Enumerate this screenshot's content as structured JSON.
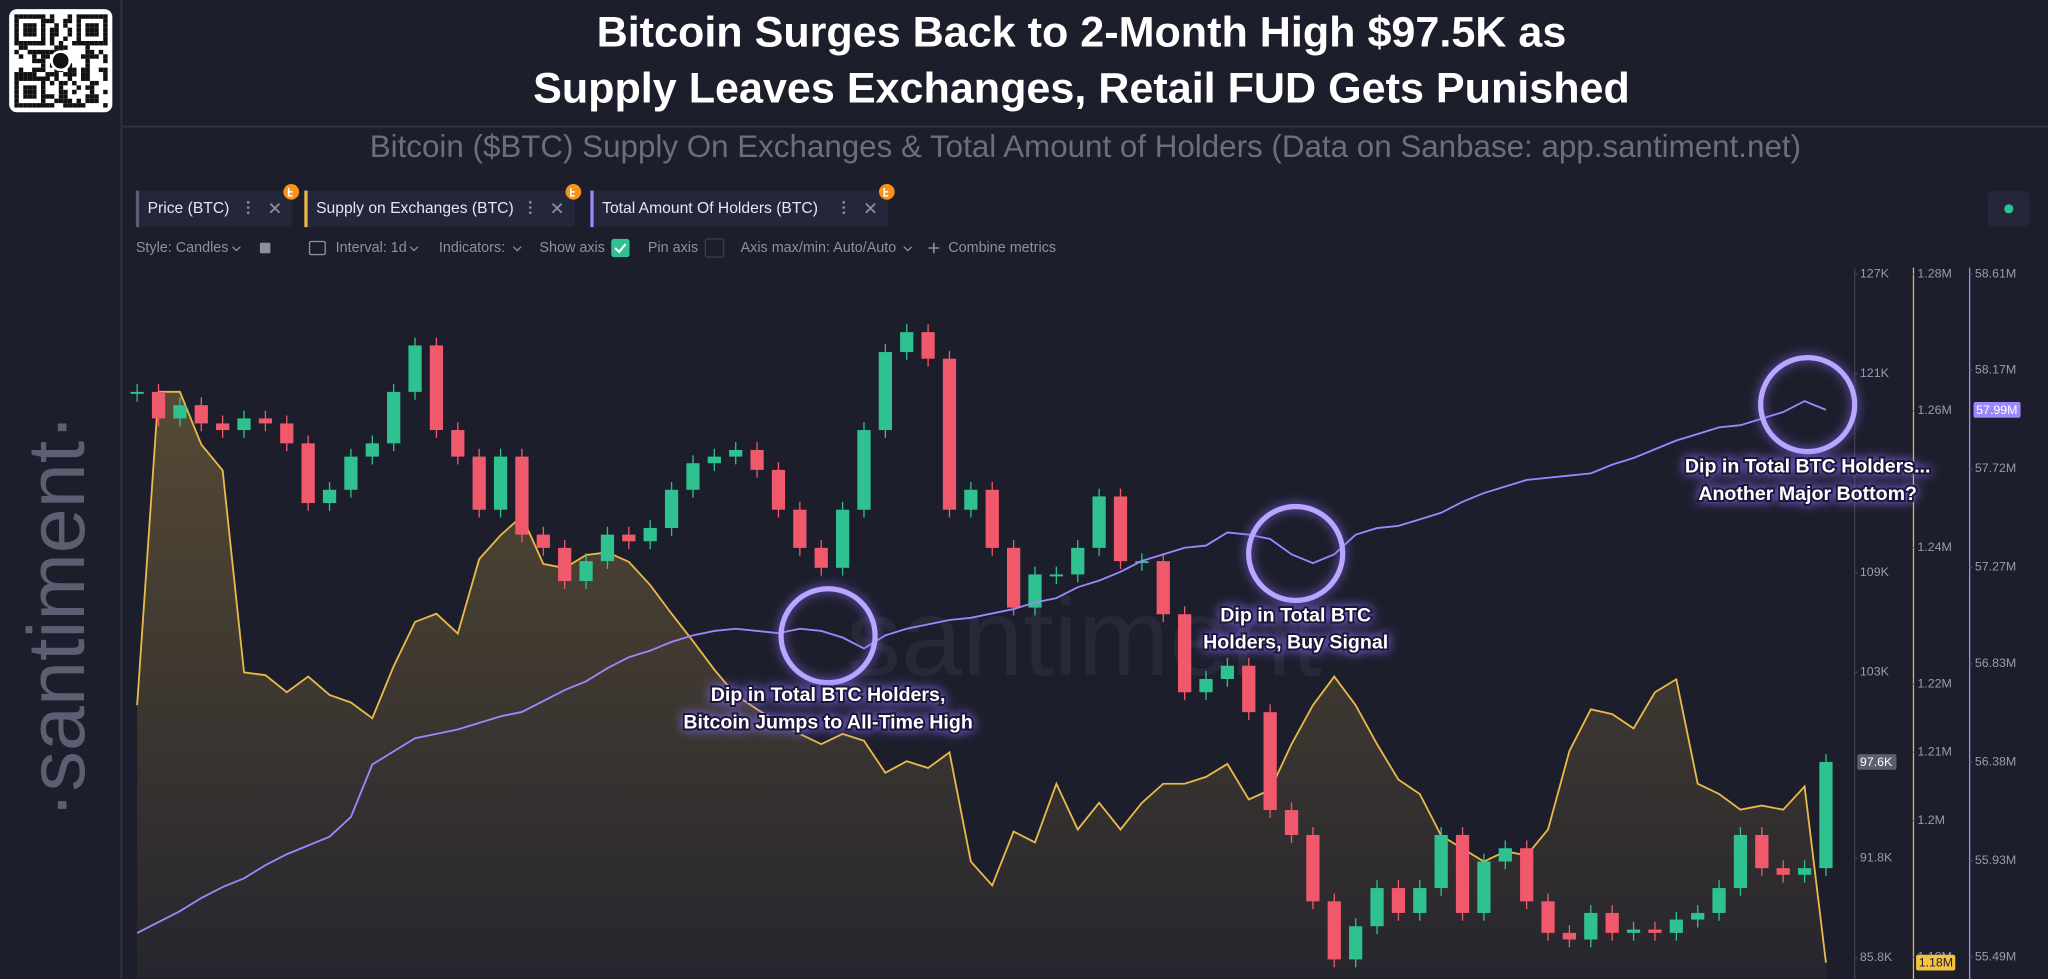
{
  "chart_data": {
    "type": "combo",
    "title_lines": [
      "Bitcoin Surges Back to 2-Month High $97.5K as",
      "Supply Leaves Exchanges, Retail FUD Gets Punished"
    ],
    "subtitle": "Bitcoin ($BTC) Supply On Exchanges & Total Amount of Holders (Data on Sanbase: app.santiment.net)",
    "toolbar": [
      "Style: Candles",
      "Interval: 1d",
      "Indicators:",
      "Show axis",
      "Pin axis",
      "Axis max/min: Auto/Auto",
      "Combine metrics"
    ],
    "brand": "·santiment·",
    "watermark": "santiment",
    "ylim": [
      84.52,
      127.39
    ],
    "yticks": [
      {
        "value": 127,
        "label": "127K"
      },
      {
        "value": 121,
        "label": "121K"
      },
      {
        "value": 109,
        "label": "109K"
      },
      {
        "value": 103,
        "label": "103K"
      },
      {
        "value": 91.8,
        "label": "91.8K"
      },
      {
        "value": 85.8,
        "label": "85.8K"
      }
    ],
    "y2lim": [
      1.1768,
      1.281
    ],
    "y2ticks": [
      {
        "value": 1.28,
        "label": "1.28M"
      },
      {
        "value": 1.26,
        "label": "1.26M"
      },
      {
        "value": 1.24,
        "label": "1.24M"
      },
      {
        "value": 1.22,
        "label": "1.22M"
      },
      {
        "value": 1.21,
        "label": "1.21M"
      },
      {
        "value": 1.2,
        "label": "1.2M"
      },
      {
        "value": 1.18,
        "label": "1.18M"
      }
    ],
    "y3lim": [
      55.39,
      58.64
    ],
    "y3ticks": [
      {
        "value": 58.61,
        "label": "58.61M"
      },
      {
        "value": 58.17,
        "label": "58.17M"
      },
      {
        "value": 57.72,
        "label": "57.72M"
      },
      {
        "value": 57.27,
        "label": "57.27M"
      },
      {
        "value": 56.83,
        "label": "56.83M"
      },
      {
        "value": 56.38,
        "label": "56.38M"
      },
      {
        "value": 55.93,
        "label": "55.93M"
      },
      {
        "value": 55.49,
        "label": "55.49M"
      }
    ],
    "series": [
      {
        "name": "Price (BTC)",
        "type": "candlestick",
        "axis": "y",
        "up_color": "#2fc18f",
        "down_color": "#f0596b",
        "tab_color": "#5c5f71",
        "last_label": "97.6K",
        "badge_color": "#5b5e6e",
        "values": [
          119.9,
          118.3,
          119.1,
          118.0,
          117.6,
          118.3,
          118.0,
          116.8,
          113.2,
          114.0,
          116.0,
          116.8,
          119.9,
          122.7,
          117.6,
          116.0,
          112.8,
          116.0,
          111.3,
          110.5,
          108.5,
          109.7,
          111.3,
          110.9,
          111.7,
          114.0,
          115.6,
          116.0,
          116.4,
          115.2,
          112.8,
          110.5,
          109.3,
          112.8,
          117.6,
          122.3,
          123.5,
          121.9,
          112.8,
          114.0,
          110.5,
          106.9,
          108.9,
          108.9,
          110.5,
          113.6,
          109.7,
          109.7,
          106.5,
          101.8,
          102.6,
          103.4,
          100.6,
          94.7,
          93.2,
          89.2,
          85.7,
          87.7,
          90.0,
          88.5,
          90.0,
          93.2,
          88.5,
          91.6,
          92.4,
          89.2,
          87.3,
          86.9,
          88.5,
          87.3,
          87.5,
          87.3,
          88.1,
          88.5,
          90.0,
          93.2,
          91.2,
          90.8,
          91.2,
          97.6
        ]
      },
      {
        "name": "Supply on Exchanges (BTC)",
        "type": "area",
        "axis": "y2",
        "color": "#e9b949",
        "last_label": "1.18M",
        "badge_color": "#f5c342",
        "values": [
          1.2169,
          1.2628,
          1.2628,
          1.2551,
          1.2513,
          1.2217,
          1.2213,
          1.2188,
          1.2211,
          1.2184,
          1.2173,
          1.215,
          1.2226,
          1.2291,
          1.2303,
          1.2274,
          1.2383,
          1.2418,
          1.2446,
          1.2376,
          1.237,
          1.2389,
          1.2393,
          1.2379,
          1.2345,
          1.2303,
          1.2263,
          1.2221,
          1.2184,
          1.2163,
          1.2144,
          1.2127,
          1.2112,
          1.2127,
          1.2117,
          1.207,
          1.2087,
          1.2077,
          1.21,
          1.194,
          1.1905,
          1.1984,
          1.1968,
          1.2054,
          1.1987,
          1.2026,
          1.1987,
          1.2026,
          1.2054,
          1.2054,
          1.2064,
          1.2083,
          1.2031,
          1.2045,
          1.2112,
          1.2169,
          1.2211,
          1.2169,
          1.2112,
          1.206,
          1.2039,
          1.1978,
          1.1959,
          1.194,
          1.1955,
          1.1949,
          1.1987,
          1.2102,
          1.2163,
          1.2156,
          1.2135,
          1.2188,
          1.2207,
          1.2054,
          1.2039,
          1.2016,
          1.2022,
          1.2016,
          1.205,
          1.1792
        ]
      },
      {
        "name": "Total Amount Of Holders (BTC)",
        "type": "line",
        "axis": "y3",
        "color": "#9d87ff",
        "last_label": "57.99M",
        "badge_color": "#9d87ff",
        "values": [
          55.6,
          55.65,
          55.7,
          55.76,
          55.81,
          55.85,
          55.91,
          55.96,
          56.0,
          56.04,
          56.13,
          56.37,
          56.43,
          56.49,
          56.51,
          56.53,
          56.56,
          56.59,
          56.61,
          56.66,
          56.71,
          56.75,
          56.81,
          56.86,
          56.89,
          56.93,
          56.96,
          56.98,
          56.99,
          56.98,
          56.97,
          56.99,
          56.98,
          56.95,
          56.9,
          56.96,
          56.99,
          57.01,
          57.03,
          57.04,
          57.06,
          57.08,
          57.11,
          57.13,
          57.18,
          57.21,
          57.25,
          57.3,
          57.33,
          57.36,
          57.37,
          57.43,
          57.42,
          57.4,
          57.33,
          57.29,
          57.33,
          57.42,
          57.45,
          57.46,
          57.49,
          57.52,
          57.57,
          57.61,
          57.64,
          57.67,
          57.68,
          57.69,
          57.7,
          57.74,
          57.77,
          57.81,
          57.85,
          57.88,
          57.91,
          57.92,
          57.95,
          57.98,
          58.03,
          57.99
        ]
      }
    ],
    "annotations": [
      {
        "lines": [
          "Dip in Total BTC Holders,",
          "Bitcoin Jumps to All-Time High"
        ]
      },
      {
        "lines": [
          "Dip in Total BTC",
          "Holders, Buy Signal"
        ]
      },
      {
        "lines": [
          "Dip in Total BTC Holders...",
          "Another Major Bottom?"
        ]
      }
    ]
  }
}
